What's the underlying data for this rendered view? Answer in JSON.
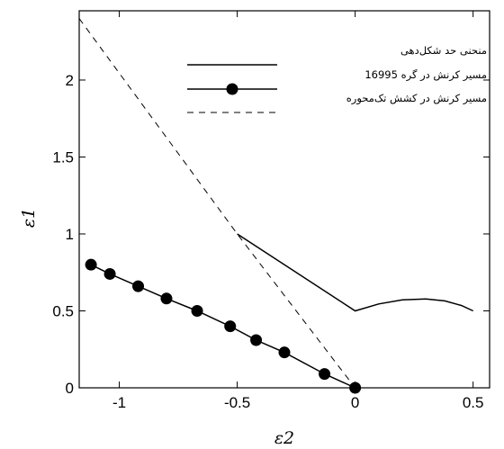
{
  "chart_data": {
    "type": "line",
    "xlabel": "ε2",
    "ylabel": "ε1",
    "xlim": [
      -1.17,
      0.57
    ],
    "ylim": [
      0,
      2.45
    ],
    "xticks": [
      -1,
      -0.5,
      0,
      0.5
    ],
    "xtick_labels": [
      "-1",
      "-0.5",
      "0",
      "0.5"
    ],
    "yticks": [
      0,
      0.5,
      1,
      1.5,
      2
    ],
    "ytick_labels": [
      "0",
      "0.5",
      "1",
      "1.5",
      "2"
    ],
    "grid": false,
    "legend_position": "top-right",
    "series": [
      {
        "name": "منحنی حد شکل‌دهی",
        "style": "solid",
        "color": "#000000",
        "points": [
          [
            -0.5,
            1.0
          ],
          [
            0.0,
            0.5
          ],
          [
            0.1,
            0.545
          ],
          [
            0.2,
            0.572
          ],
          [
            0.3,
            0.578
          ],
          [
            0.38,
            0.565
          ],
          [
            0.45,
            0.535
          ],
          [
            0.5,
            0.5
          ]
        ]
      },
      {
        "name": "مسیر کرنش در گره 16995",
        "style": "solid-markers",
        "color": "#000000",
        "points": [
          [
            -1.12,
            0.8
          ],
          [
            -1.04,
            0.74
          ],
          [
            -0.92,
            0.66
          ],
          [
            -0.8,
            0.58
          ],
          [
            -0.67,
            0.5
          ],
          [
            -0.53,
            0.4
          ],
          [
            -0.42,
            0.31
          ],
          [
            -0.3,
            0.23
          ],
          [
            -0.13,
            0.09
          ],
          [
            0.0,
            0.0
          ]
        ]
      },
      {
        "name": "مسیر کرنش در کشش تک‌محوره",
        "style": "dashed",
        "color": "#000000",
        "points": [
          [
            -1.17,
            2.4
          ],
          [
            -0.5,
            1.0
          ],
          [
            0.0,
            0.0
          ]
        ]
      }
    ]
  }
}
